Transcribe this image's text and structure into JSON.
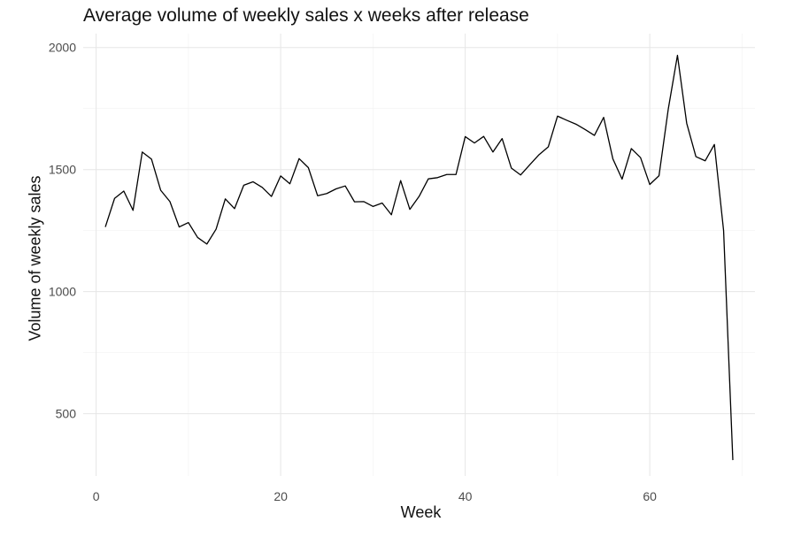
{
  "chart_data": {
    "type": "line",
    "title": "Average volume of weekly sales x weeks after release",
    "xlabel": "Week",
    "ylabel": "Volume of weekly sales",
    "xlim": [
      -1.4,
      71.4
    ],
    "ylim": [
      245,
      2057
    ],
    "x_ticks": [
      0,
      20,
      40,
      60
    ],
    "x_minor_ticks": [
      10,
      30,
      50,
      70
    ],
    "y_ticks": [
      500,
      1000,
      1500,
      2000
    ],
    "y_minor_ticks": [
      750,
      1250,
      1750
    ],
    "x_tick_labels": [
      "0",
      "20",
      "40",
      "60"
    ],
    "y_tick_labels": [
      "500",
      "1000",
      "1500",
      "2000"
    ],
    "grid": true,
    "line_color": "#000000",
    "series": [
      {
        "x": [
          1,
          2,
          3,
          4,
          5,
          6,
          7,
          8,
          9,
          10,
          11,
          12,
          13,
          14,
          15,
          16,
          17,
          18,
          19,
          20,
          21,
          22,
          23,
          24,
          25,
          26,
          27,
          28,
          29,
          30,
          31,
          32,
          33,
          34,
          35,
          36,
          37,
          38,
          39,
          40,
          41,
          42,
          43,
          44,
          45,
          46,
          47,
          48,
          49,
          50,
          51,
          52,
          53,
          54,
          55,
          56,
          57,
          58,
          59,
          60,
          61,
          62,
          63,
          64,
          65,
          66,
          67,
          68,
          69
        ],
        "values": [
          1265,
          1382,
          1412,
          1333,
          1572,
          1543,
          1415,
          1369,
          1265,
          1283,
          1222,
          1195,
          1256,
          1380,
          1340,
          1436,
          1450,
          1427,
          1390,
          1474,
          1442,
          1545,
          1508,
          1393,
          1402,
          1421,
          1433,
          1368,
          1369,
          1349,
          1363,
          1315,
          1455,
          1337,
          1390,
          1462,
          1467,
          1480,
          1480,
          1635,
          1609,
          1636,
          1572,
          1627,
          1506,
          1478,
          1520,
          1561,
          1593,
          1719,
          1702,
          1686,
          1664,
          1640,
          1714,
          1544,
          1461,
          1586,
          1549,
          1439,
          1475,
          1747,
          1968,
          1690,
          1553,
          1536,
          1603,
          1250,
          310
        ]
      }
    ]
  }
}
